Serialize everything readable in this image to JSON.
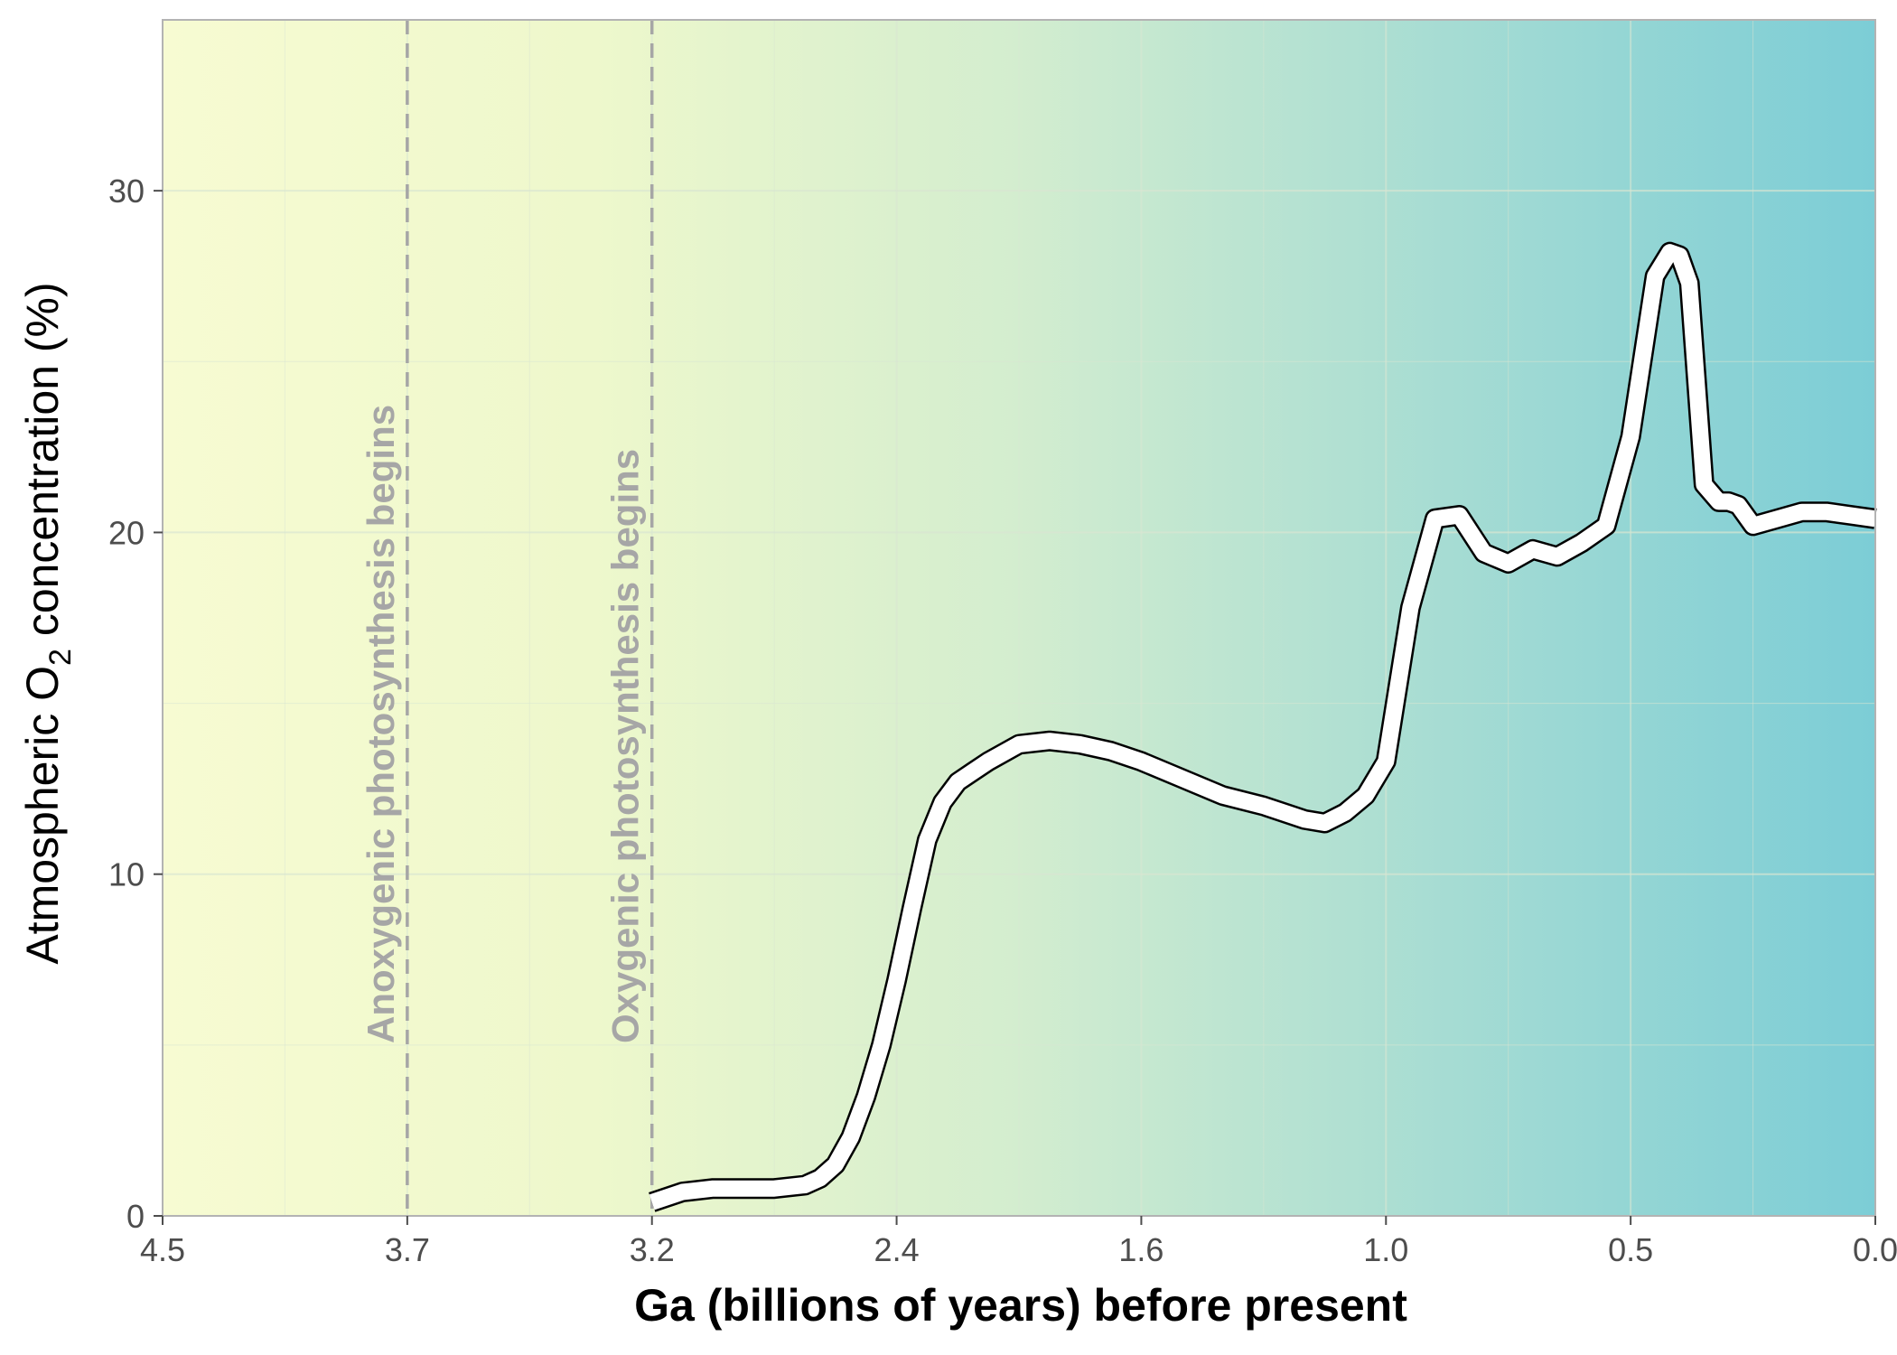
{
  "chart_data": {
    "type": "line",
    "xlabel": "Ga (billions of years) before present",
    "ylabel": {
      "prefix": "Atmospheric O",
      "subscript": "2",
      "suffix": " concentration (%)"
    },
    "x_ticks": [
      {
        "value": 4.5,
        "label": "4.5"
      },
      {
        "value": 3.7,
        "label": "3.7"
      },
      {
        "value": 3.2,
        "label": "3.2"
      },
      {
        "value": 2.4,
        "label": "2.4"
      },
      {
        "value": 1.6,
        "label": "1.6"
      },
      {
        "value": 1.0,
        "label": "1.0"
      },
      {
        "value": 0.5,
        "label": "0.5"
      },
      {
        "value": 0.0,
        "label": "0.0"
      }
    ],
    "y_ticks": [
      {
        "value": 0,
        "label": "0"
      },
      {
        "value": 10,
        "label": "10"
      },
      {
        "value": 20,
        "label": "20"
      },
      {
        "value": 30,
        "label": "30"
      }
    ],
    "ylim": [
      0,
      35
    ],
    "xlim": [
      4.5,
      0.0
    ],
    "x_reversed": true,
    "grid": true,
    "background_gradient": [
      "#f7fbd2",
      "#e3f3cd",
      "#c0e6d2",
      "#9fd9d3",
      "#7ccdd6"
    ],
    "annotations": [
      {
        "x": 3.7,
        "label": "Anoxygenic photosynthesis begins"
      },
      {
        "x": 3.2,
        "label": "Oxygenic photosynthesis begins"
      }
    ],
    "series": [
      {
        "x": [
          3.2,
          3.1,
          3.0,
          2.9,
          2.8,
          2.7,
          2.65,
          2.6,
          2.55,
          2.5,
          2.45,
          2.4,
          2.35,
          2.3,
          2.25,
          2.2,
          2.15,
          2.1,
          2.0,
          1.9,
          1.8,
          1.7,
          1.6,
          1.5,
          1.4,
          1.3,
          1.2,
          1.15,
          1.1,
          1.05,
          1.0,
          0.95,
          0.9,
          0.85,
          0.8,
          0.75,
          0.7,
          0.65,
          0.6,
          0.55,
          0.5,
          0.45,
          0.42,
          0.4,
          0.38,
          0.35,
          0.32,
          0.3,
          0.28,
          0.25,
          0.2,
          0.15,
          0.1,
          0.05,
          0.0
        ],
        "y": [
          0.4,
          0.7,
          0.8,
          0.8,
          0.8,
          0.9,
          1.1,
          1.5,
          2.3,
          3.5,
          5.0,
          6.9,
          9.0,
          11.0,
          12.1,
          12.7,
          13.0,
          13.3,
          13.8,
          13.9,
          13.8,
          13.6,
          13.3,
          12.8,
          12.3,
          12.0,
          11.6,
          11.5,
          11.8,
          12.3,
          13.3,
          17.8,
          20.4,
          20.5,
          19.4,
          19.1,
          19.5,
          19.3,
          19.7,
          20.2,
          22.8,
          27.5,
          28.2,
          28.1,
          27.3,
          21.4,
          20.9,
          20.9,
          20.8,
          20.2,
          20.4,
          20.6,
          20.6,
          20.5,
          20.4
        ],
        "color": "#ffffff",
        "outline": "#000000"
      }
    ]
  }
}
